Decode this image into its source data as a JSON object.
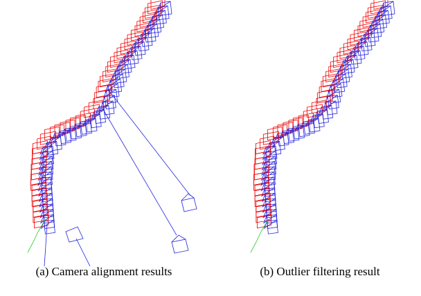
{
  "figure": {
    "subfigures": [
      {
        "caption": "(a) Camera alignment results"
      },
      {
        "caption": "(b) Outlier filtering result"
      }
    ]
  }
}
